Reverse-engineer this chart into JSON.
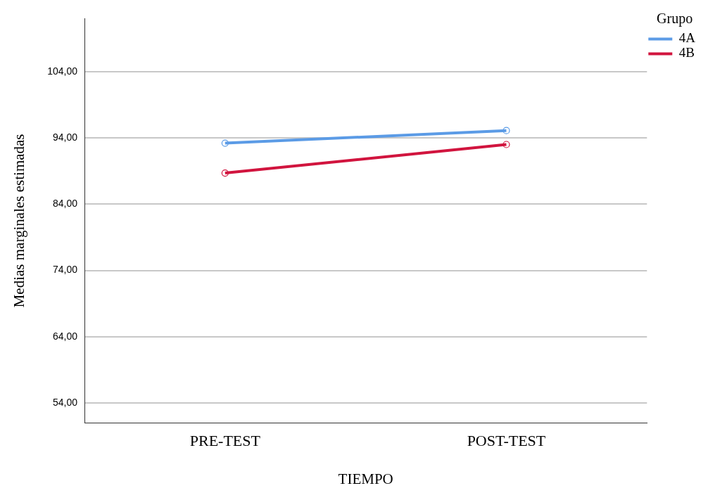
{
  "chart_data": {
    "type": "line",
    "xlabel": "TIEMPO",
    "ylabel": "Medias marginales estimadas",
    "legend_title": "Grupo",
    "categories": [
      "PRE-TEST",
      "POST-TEST"
    ],
    "series": [
      {
        "name": "4A",
        "color": "#5b9be6",
        "values": [
          93.2,
          95.1
        ]
      },
      {
        "name": "4B",
        "color": "#d1143e",
        "values": [
          88.7,
          93.0
        ]
      }
    ],
    "ylim": [
      51,
      112
    ],
    "yticks": [
      {
        "value": 54,
        "label": "54,00"
      },
      {
        "value": 64,
        "label": "64,00"
      },
      {
        "value": 74,
        "label": "74,00"
      },
      {
        "value": 84,
        "label": "84,00"
      },
      {
        "value": 94,
        "label": "94,00"
      },
      {
        "value": 104,
        "label": "104,00"
      }
    ],
    "grid": "y",
    "legend": "top right",
    "marker": "circle",
    "line_style": "solid"
  }
}
